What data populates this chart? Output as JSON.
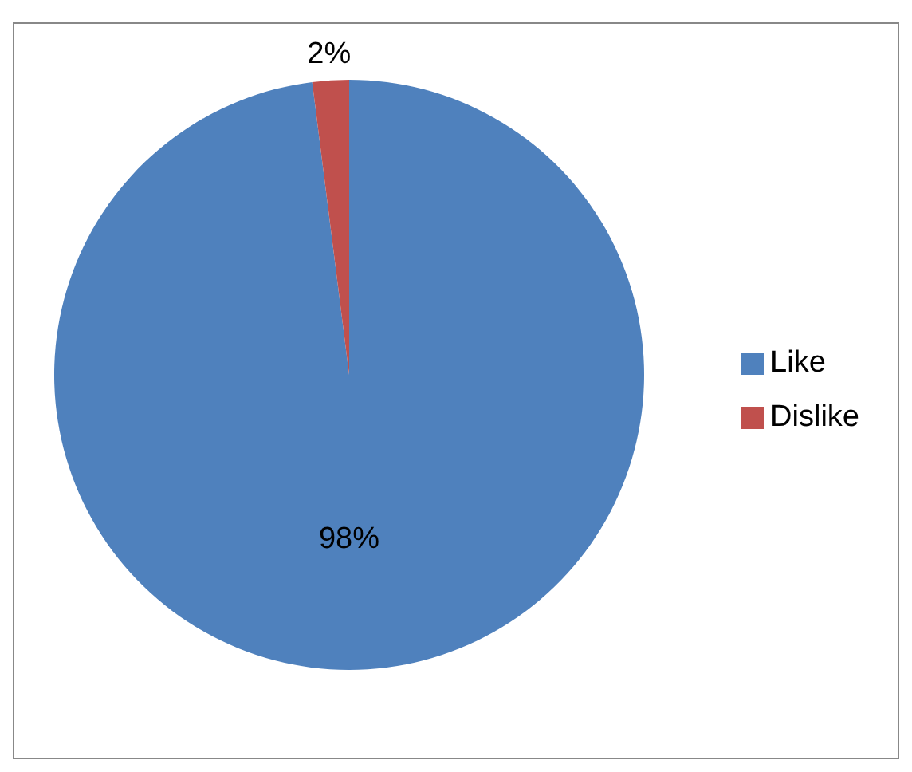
{
  "chart_data": {
    "type": "pie",
    "categories": [
      "Like",
      "Dislike"
    ],
    "values": [
      98,
      2
    ],
    "colors": [
      "#4f81bd",
      "#c0504d"
    ],
    "value_labels": [
      "98%",
      "2%"
    ],
    "legend": "right"
  }
}
